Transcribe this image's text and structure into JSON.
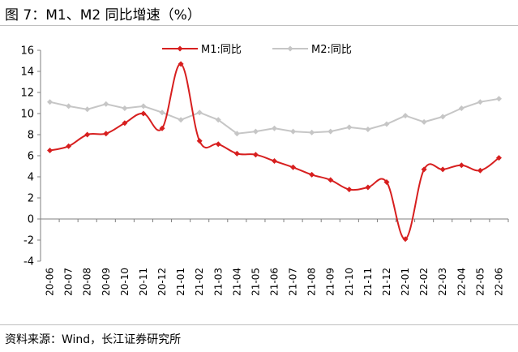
{
  "figure": {
    "title": "图 7：M1、M2 同比增速（%）",
    "source": "资料来源：Wind，长江证券研究所"
  },
  "colors": {
    "m1": "#d71f1f",
    "m2": "#c6c6c6",
    "axis": "#7f7f7f"
  },
  "chart_data": {
    "type": "line",
    "title": "M1、M2 同比增速（%）",
    "xlabel": "",
    "ylabel": "",
    "ylim": [
      -4,
      16
    ],
    "yticks": [
      16,
      14,
      12,
      10,
      8,
      6,
      4,
      2,
      0,
      -2,
      -4
    ],
    "grid": false,
    "legend_position": "top-center",
    "categories": [
      "20-06",
      "20-07",
      "20-08",
      "20-09",
      "20-10",
      "20-11",
      "20-12",
      "21-01",
      "21-02",
      "21-03",
      "21-04",
      "21-05",
      "21-06",
      "21-07",
      "21-08",
      "21-09",
      "21-10",
      "21-11",
      "21-12",
      "22-01",
      "22-02",
      "22-03",
      "22-04",
      "22-05",
      "22-06"
    ],
    "series": [
      {
        "name": "M1:同比",
        "values": [
          6.5,
          6.9,
          8.0,
          8.1,
          9.1,
          10.0,
          8.6,
          14.7,
          7.4,
          7.1,
          6.2,
          6.1,
          5.5,
          4.9,
          4.2,
          3.7,
          2.8,
          3.0,
          3.5,
          -1.9,
          4.7,
          4.7,
          5.1,
          4.6,
          5.8
        ]
      },
      {
        "name": "M2:同比",
        "values": [
          11.1,
          10.7,
          10.4,
          10.9,
          10.5,
          10.7,
          10.1,
          9.4,
          10.1,
          9.4,
          8.1,
          8.3,
          8.6,
          8.3,
          8.2,
          8.3,
          8.7,
          8.5,
          9.0,
          9.8,
          9.2,
          9.7,
          10.5,
          11.1,
          11.4
        ]
      }
    ]
  }
}
